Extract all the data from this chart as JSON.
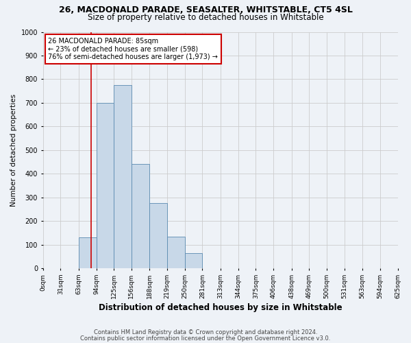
{
  "title1": "26, MACDONALD PARADE, SEASALTER, WHITSTABLE, CT5 4SL",
  "title2": "Size of property relative to detached houses in Whitstable",
  "xlabel": "Distribution of detached houses by size in Whitstable",
  "ylabel": "Number of detached properties",
  "footnote1": "Contains HM Land Registry data © Crown copyright and database right 2024.",
  "footnote2": "Contains public sector information licensed under the Open Government Licence v3.0.",
  "bin_labels": [
    "0sqm",
    "31sqm",
    "63sqm",
    "94sqm",
    "125sqm",
    "156sqm",
    "188sqm",
    "219sqm",
    "250sqm",
    "281sqm",
    "313sqm",
    "344sqm",
    "375sqm",
    "406sqm",
    "438sqm",
    "469sqm",
    "500sqm",
    "531sqm",
    "563sqm",
    "594sqm",
    "625sqm"
  ],
  "bin_edges": [
    0,
    31,
    63,
    94,
    125,
    156,
    188,
    219,
    250,
    281,
    313,
    344,
    375,
    406,
    438,
    469,
    500,
    531,
    563,
    594,
    625
  ],
  "bar_heights": [
    0,
    0,
    130,
    700,
    775,
    440,
    275,
    135,
    65,
    0,
    0,
    0,
    0,
    0,
    0,
    0,
    0,
    0,
    0,
    0,
    0
  ],
  "bar_color": "#c8d8e8",
  "bar_edge_color": "#5a8ab0",
  "property_size": 85,
  "annotation_text": "26 MACDONALD PARADE: 85sqm\n← 23% of detached houses are smaller (598)\n76% of semi-detached houses are larger (1,973) →",
  "annotation_box_color": "#ffffff",
  "annotation_box_edge": "#cc0000",
  "vline_color": "#cc0000",
  "ylim": [
    0,
    1000
  ],
  "yticks": [
    0,
    100,
    200,
    300,
    400,
    500,
    600,
    700,
    800,
    900,
    1000
  ],
  "grid_color": "#cccccc",
  "bg_color": "#eef2f7",
  "title1_fontsize": 9,
  "title2_fontsize": 8.5,
  "ylabel_fontsize": 7.5,
  "xlabel_fontsize": 8.5,
  "tick_fontsize": 6.5,
  "footnote_fontsize": 6,
  "annotation_fontsize": 7
}
